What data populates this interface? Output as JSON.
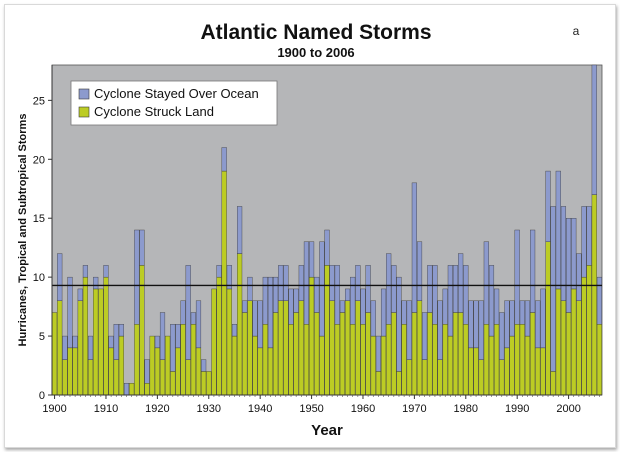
{
  "chart_data": {
    "type": "bar",
    "stacked": true,
    "title": "Atlantic Named Storms",
    "subtitle": "1900 to 2006",
    "panel_label": "a",
    "xlabel": "Year",
    "ylabel": "Hurricanes, Tropical and Subtropical Storms",
    "x_start": 1900,
    "x_end": 2006,
    "xlim": [
      1899.5,
      2006.5
    ],
    "ylim": [
      0,
      28
    ],
    "xticks": [
      1900,
      1910,
      1920,
      1930,
      1940,
      1950,
      1960,
      1970,
      1980,
      1990,
      2000
    ],
    "yticks": [
      0,
      5,
      10,
      15,
      20,
      25
    ],
    "reference_line": 9.3,
    "grid": false,
    "legend_position": "top-left",
    "colors": {
      "plot_background": "#b5b6b8",
      "ocean": "#8c9acd",
      "land": "#bccc24",
      "bar_edge": "#3a3a3a",
      "reference_line": "#111111"
    },
    "series": [
      {
        "name": "Cyclone Struck Land",
        "color": "#bccc24",
        "values": [
          7,
          8,
          3,
          4,
          4,
          8,
          10,
          3,
          9,
          9,
          10,
          4,
          3,
          5,
          0,
          1,
          6,
          11,
          1,
          5,
          4,
          3,
          5,
          2,
          4,
          6,
          3,
          6,
          4,
          2,
          2,
          9,
          10,
          19,
          9,
          5,
          12,
          7,
          8,
          5,
          4,
          6,
          4,
          7,
          8,
          8,
          6,
          7,
          8,
          6,
          10,
          7,
          5,
          11,
          8,
          6,
          7,
          8,
          6,
          8,
          6,
          7,
          5,
          2,
          5,
          6,
          7,
          2,
          6,
          3,
          7,
          8,
          3,
          7,
          6,
          3,
          6,
          5,
          7,
          7,
          6,
          4,
          4,
          3,
          6,
          5,
          6,
          3,
          4,
          5,
          6,
          6,
          5,
          7,
          4,
          4,
          13,
          2,
          9,
          8,
          7,
          9,
          8,
          10,
          11,
          17,
          6
        ],
        "values_note": "first value 1900, one per year"
      },
      {
        "name": "Cyclone Stayed Over Ocean",
        "color": "#8c9acd",
        "values": [
          0,
          4,
          2,
          6,
          1,
          1,
          1,
          2,
          1,
          0,
          1,
          1,
          3,
          1,
          1,
          0,
          8,
          3,
          2,
          0,
          1,
          4,
          0,
          4,
          2,
          2,
          8,
          1,
          4,
          1,
          0,
          0,
          1,
          2,
          2,
          1,
          4,
          1,
          2,
          3,
          4,
          4,
          6,
          3,
          3,
          3,
          3,
          2,
          3,
          7,
          3,
          3,
          8,
          3,
          3,
          5,
          1,
          1,
          4,
          3,
          3,
          4,
          3,
          3,
          4,
          6,
          4,
          8,
          2,
          5,
          11,
          5,
          4,
          4,
          5,
          5,
          3,
          6,
          4,
          5,
          5,
          4,
          4,
          5,
          7,
          6,
          3,
          4,
          4,
          3,
          8,
          2,
          3,
          7,
          4,
          5,
          6,
          14,
          10,
          8,
          8,
          6,
          4,
          6,
          5,
          11,
          4
        ]
      }
    ]
  }
}
